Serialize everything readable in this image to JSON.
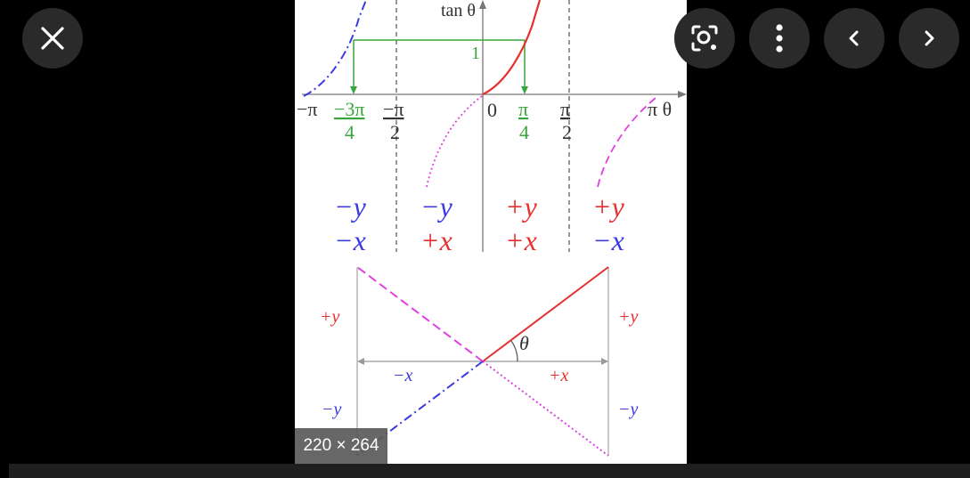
{
  "viewer": {
    "size_label": "220 × 264"
  },
  "buttons": {
    "close": "close-icon",
    "lens": "lens-icon",
    "more": "more-vert-icon",
    "prev": "chevron-left-icon",
    "next": "chevron-right-icon"
  },
  "figure": {
    "axis_title": "tan θ",
    "one_label": "1",
    "x_ticks": {
      "neg_pi": "−π",
      "neg_3pi_num": "−3π",
      "neg_3pi_den": "4",
      "neg_half_num": "−π",
      "neg_half_den": "2",
      "zero": "0",
      "quarter_num": "π",
      "quarter_den": "4",
      "half_num": "π",
      "half_den": "2",
      "pi_theta": "π θ"
    },
    "quadrants": [
      {
        "y": "−y",
        "x": "−x"
      },
      {
        "y": "−y",
        "x": "+x"
      },
      {
        "y": "+y",
        "x": "+x"
      },
      {
        "y": "+y",
        "x": "−x"
      }
    ],
    "triangle": {
      "left_top": "+y",
      "right_top": "+y",
      "theta": "θ",
      "neg_x": "−x",
      "pos_x": "+x",
      "left_bottom": "−y",
      "right_bottom": "−y"
    },
    "colors": {
      "red": "#e83030",
      "blue": "#3a3ae0",
      "green": "#3aa53a",
      "magenta": "#e040e0",
      "gray": "#888888"
    }
  }
}
